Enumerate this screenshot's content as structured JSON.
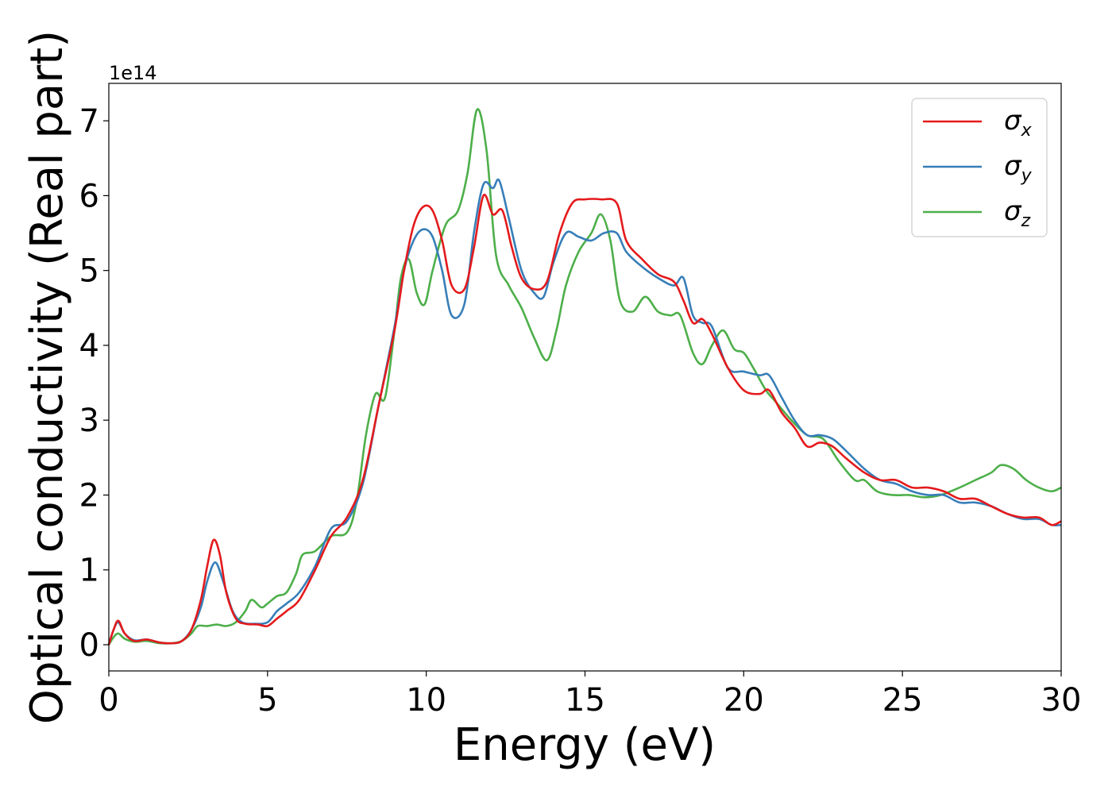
{
  "chart_data": {
    "type": "line",
    "xlabel": "Energy (eV)",
    "ylabel": "Optical conductivity (Real part)",
    "y_offset_label": "1e14",
    "xlim": [
      0,
      30
    ],
    "ylim": [
      -0.35,
      7.5
    ],
    "x_ticks": [
      0,
      5,
      10,
      15,
      20,
      25,
      30
    ],
    "y_ticks": [
      0,
      1,
      2,
      3,
      4,
      5,
      6,
      7
    ],
    "x_tick_labels": [
      "0",
      "5",
      "10",
      "15",
      "20",
      "25",
      "30"
    ],
    "y_tick_labels": [
      "0",
      "1",
      "2",
      "3",
      "4",
      "5",
      "6",
      "7"
    ],
    "legend_position": "top-right",
    "grid": false,
    "series": [
      {
        "name": "σx",
        "symbol": "σ",
        "subscript": "x",
        "color": "#e41a1c",
        "points": [
          [
            0,
            0
          ],
          [
            0.15,
            0.2
          ],
          [
            0.3,
            0.32
          ],
          [
            0.5,
            0.15
          ],
          [
            0.8,
            0.05
          ],
          [
            1.2,
            0.07
          ],
          [
            1.6,
            0.03
          ],
          [
            2.0,
            0.02
          ],
          [
            2.3,
            0.05
          ],
          [
            2.6,
            0.2
          ],
          [
            2.9,
            0.6
          ],
          [
            3.1,
            1.05
          ],
          [
            3.3,
            1.4
          ],
          [
            3.5,
            1.2
          ],
          [
            3.7,
            0.7
          ],
          [
            4.0,
            0.35
          ],
          [
            4.3,
            0.28
          ],
          [
            4.7,
            0.27
          ],
          [
            5.0,
            0.25
          ],
          [
            5.3,
            0.35
          ],
          [
            5.6,
            0.45
          ],
          [
            6.0,
            0.6
          ],
          [
            6.5,
            1.0
          ],
          [
            7.0,
            1.45
          ],
          [
            7.5,
            1.7
          ],
          [
            8.0,
            2.2
          ],
          [
            8.5,
            3.2
          ],
          [
            9.0,
            4.2
          ],
          [
            9.3,
            5.0
          ],
          [
            9.6,
            5.6
          ],
          [
            9.9,
            5.85
          ],
          [
            10.2,
            5.8
          ],
          [
            10.5,
            5.4
          ],
          [
            10.8,
            4.8
          ],
          [
            11.2,
            4.75
          ],
          [
            11.5,
            5.3
          ],
          [
            11.8,
            6.0
          ],
          [
            12.1,
            5.75
          ],
          [
            12.4,
            5.8
          ],
          [
            12.7,
            5.3
          ],
          [
            13.0,
            4.9
          ],
          [
            13.4,
            4.75
          ],
          [
            13.8,
            4.85
          ],
          [
            14.2,
            5.5
          ],
          [
            14.6,
            5.9
          ],
          [
            15.0,
            5.95
          ],
          [
            15.5,
            5.95
          ],
          [
            16.0,
            5.9
          ],
          [
            16.3,
            5.4
          ],
          [
            16.8,
            5.15
          ],
          [
            17.3,
            4.95
          ],
          [
            17.8,
            4.85
          ],
          [
            18.1,
            4.6
          ],
          [
            18.4,
            4.3
          ],
          [
            18.7,
            4.35
          ],
          [
            19.0,
            4.15
          ],
          [
            19.5,
            3.7
          ],
          [
            20.0,
            3.4
          ],
          [
            20.5,
            3.35
          ],
          [
            20.8,
            3.4
          ],
          [
            21.2,
            3.1
          ],
          [
            21.6,
            2.9
          ],
          [
            22.0,
            2.65
          ],
          [
            22.4,
            2.7
          ],
          [
            22.8,
            2.65
          ],
          [
            23.2,
            2.5
          ],
          [
            23.8,
            2.3
          ],
          [
            24.3,
            2.2
          ],
          [
            24.8,
            2.2
          ],
          [
            25.3,
            2.1
          ],
          [
            25.8,
            2.1
          ],
          [
            26.3,
            2.05
          ],
          [
            26.8,
            1.95
          ],
          [
            27.3,
            1.95
          ],
          [
            27.8,
            1.85
          ],
          [
            28.3,
            1.75
          ],
          [
            28.8,
            1.7
          ],
          [
            29.3,
            1.7
          ],
          [
            29.7,
            1.6
          ],
          [
            30.0,
            1.65
          ]
        ]
      },
      {
        "name": "σy",
        "symbol": "σ",
        "subscript": "y",
        "color": "#377eb8",
        "points": [
          [
            0,
            0
          ],
          [
            0.15,
            0.2
          ],
          [
            0.3,
            0.3
          ],
          [
            0.5,
            0.15
          ],
          [
            0.8,
            0.06
          ],
          [
            1.2,
            0.07
          ],
          [
            1.6,
            0.03
          ],
          [
            2.0,
            0.02
          ],
          [
            2.3,
            0.05
          ],
          [
            2.6,
            0.2
          ],
          [
            2.9,
            0.5
          ],
          [
            3.1,
            0.85
          ],
          [
            3.35,
            1.1
          ],
          [
            3.6,
            0.85
          ],
          [
            3.9,
            0.45
          ],
          [
            4.2,
            0.3
          ],
          [
            4.6,
            0.28
          ],
          [
            5.0,
            0.3
          ],
          [
            5.3,
            0.45
          ],
          [
            5.6,
            0.55
          ],
          [
            6.0,
            0.7
          ],
          [
            6.5,
            1.05
          ],
          [
            7.0,
            1.55
          ],
          [
            7.5,
            1.65
          ],
          [
            8.0,
            2.15
          ],
          [
            8.5,
            3.2
          ],
          [
            9.0,
            4.25
          ],
          [
            9.3,
            5.0
          ],
          [
            9.6,
            5.4
          ],
          [
            9.9,
            5.55
          ],
          [
            10.2,
            5.45
          ],
          [
            10.5,
            5.0
          ],
          [
            10.8,
            4.4
          ],
          [
            11.2,
            4.55
          ],
          [
            11.5,
            5.5
          ],
          [
            11.8,
            6.15
          ],
          [
            12.1,
            6.1
          ],
          [
            12.3,
            6.2
          ],
          [
            12.6,
            5.7
          ],
          [
            13.0,
            5.0
          ],
          [
            13.4,
            4.7
          ],
          [
            13.7,
            4.65
          ],
          [
            14.0,
            5.1
          ],
          [
            14.4,
            5.5
          ],
          [
            14.8,
            5.45
          ],
          [
            15.2,
            5.4
          ],
          [
            15.6,
            5.5
          ],
          [
            16.0,
            5.5
          ],
          [
            16.3,
            5.25
          ],
          [
            16.8,
            5.05
          ],
          [
            17.3,
            4.9
          ],
          [
            17.8,
            4.8
          ],
          [
            18.1,
            4.9
          ],
          [
            18.4,
            4.4
          ],
          [
            18.7,
            4.3
          ],
          [
            19.0,
            4.25
          ],
          [
            19.5,
            3.7
          ],
          [
            20.0,
            3.65
          ],
          [
            20.5,
            3.6
          ],
          [
            20.8,
            3.6
          ],
          [
            21.2,
            3.3
          ],
          [
            21.6,
            3.0
          ],
          [
            22.0,
            2.8
          ],
          [
            22.4,
            2.8
          ],
          [
            22.8,
            2.75
          ],
          [
            23.2,
            2.6
          ],
          [
            23.8,
            2.35
          ],
          [
            24.3,
            2.2
          ],
          [
            24.8,
            2.15
          ],
          [
            25.3,
            2.05
          ],
          [
            25.8,
            2.0
          ],
          [
            26.3,
            2.0
          ],
          [
            26.8,
            1.9
          ],
          [
            27.3,
            1.9
          ],
          [
            27.8,
            1.85
          ],
          [
            28.3,
            1.75
          ],
          [
            28.8,
            1.68
          ],
          [
            29.3,
            1.68
          ],
          [
            29.7,
            1.6
          ],
          [
            30.0,
            1.6
          ]
        ]
      },
      {
        "name": "σz",
        "symbol": "σ",
        "subscript": "z",
        "color": "#4daf4a",
        "points": [
          [
            0,
            0
          ],
          [
            0.15,
            0.1
          ],
          [
            0.3,
            0.15
          ],
          [
            0.5,
            0.08
          ],
          [
            0.8,
            0.04
          ],
          [
            1.2,
            0.05
          ],
          [
            1.6,
            0.02
          ],
          [
            2.0,
            0.02
          ],
          [
            2.3,
            0.05
          ],
          [
            2.6,
            0.15
          ],
          [
            2.8,
            0.25
          ],
          [
            3.1,
            0.25
          ],
          [
            3.4,
            0.27
          ],
          [
            3.7,
            0.25
          ],
          [
            4.0,
            0.3
          ],
          [
            4.3,
            0.45
          ],
          [
            4.5,
            0.6
          ],
          [
            4.8,
            0.5
          ],
          [
            5.0,
            0.55
          ],
          [
            5.3,
            0.65
          ],
          [
            5.6,
            0.7
          ],
          [
            5.9,
            0.95
          ],
          [
            6.1,
            1.2
          ],
          [
            6.5,
            1.25
          ],
          [
            7.0,
            1.45
          ],
          [
            7.5,
            1.5
          ],
          [
            7.8,
            1.9
          ],
          [
            8.1,
            2.8
          ],
          [
            8.4,
            3.35
          ],
          [
            8.7,
            3.3
          ],
          [
            9.0,
            4.2
          ],
          [
            9.2,
            4.9
          ],
          [
            9.45,
            5.15
          ],
          [
            9.7,
            4.7
          ],
          [
            9.95,
            4.55
          ],
          [
            10.2,
            5.0
          ],
          [
            10.6,
            5.6
          ],
          [
            11.0,
            5.8
          ],
          [
            11.3,
            6.3
          ],
          [
            11.6,
            7.15
          ],
          [
            11.9,
            6.6
          ],
          [
            12.2,
            5.2
          ],
          [
            12.6,
            4.8
          ],
          [
            13.0,
            4.5
          ],
          [
            13.4,
            4.1
          ],
          [
            13.8,
            3.8
          ],
          [
            14.1,
            4.2
          ],
          [
            14.4,
            4.8
          ],
          [
            14.8,
            5.25
          ],
          [
            15.2,
            5.5
          ],
          [
            15.5,
            5.75
          ],
          [
            15.8,
            5.4
          ],
          [
            16.1,
            4.6
          ],
          [
            16.5,
            4.45
          ],
          [
            16.9,
            4.65
          ],
          [
            17.3,
            4.45
          ],
          [
            17.7,
            4.4
          ],
          [
            18.0,
            4.4
          ],
          [
            18.4,
            3.9
          ],
          [
            18.7,
            3.75
          ],
          [
            19.0,
            4.0
          ],
          [
            19.35,
            4.2
          ],
          [
            19.7,
            3.95
          ],
          [
            20.0,
            3.9
          ],
          [
            20.3,
            3.7
          ],
          [
            20.7,
            3.4
          ],
          [
            21.0,
            3.25
          ],
          [
            21.5,
            3.0
          ],
          [
            22.0,
            2.8
          ],
          [
            22.5,
            2.75
          ],
          [
            23.0,
            2.45
          ],
          [
            23.5,
            2.2
          ],
          [
            23.8,
            2.2
          ],
          [
            24.2,
            2.05
          ],
          [
            24.7,
            2.0
          ],
          [
            25.2,
            2.0
          ],
          [
            25.7,
            1.97
          ],
          [
            26.2,
            2.0
          ],
          [
            26.8,
            2.1
          ],
          [
            27.3,
            2.2
          ],
          [
            27.8,
            2.3
          ],
          [
            28.1,
            2.4
          ],
          [
            28.5,
            2.35
          ],
          [
            28.9,
            2.2
          ],
          [
            29.3,
            2.1
          ],
          [
            29.7,
            2.05
          ],
          [
            30.0,
            2.1
          ]
        ]
      }
    ]
  }
}
